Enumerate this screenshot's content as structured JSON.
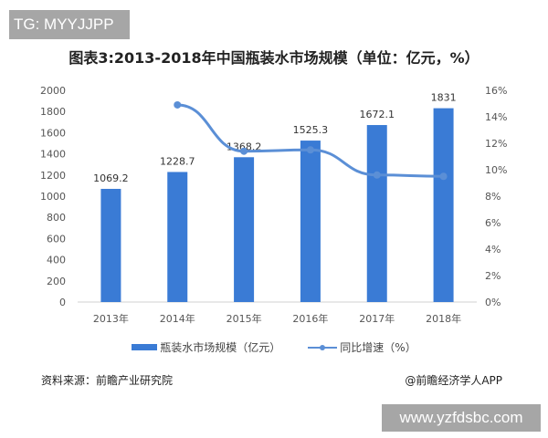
{
  "tag": "TG: MYYJJPP",
  "watermark": "www.yzfdsbc.com",
  "source": "资料来源：前瞻产业研究院",
  "credit": "@前瞻经济学人APP",
  "chart_data": {
    "type": "bar+line",
    "title": "图表3:2013-2018年中国瓶装水市场规模（单位：亿元，%）",
    "categories": [
      "2013年",
      "2014年",
      "2015年",
      "2016年",
      "2017年",
      "2018年"
    ],
    "series": [
      {
        "name": "瓶装水市场规模（亿元）",
        "type": "bar",
        "axis": "left",
        "values": [
          1069.2,
          1228.7,
          1368.2,
          1525.3,
          1672.1,
          1831
        ],
        "labels": [
          "1069.2",
          "1228.7",
          "1368.2",
          "1525.3",
          "1672.1",
          "1831"
        ],
        "color": "#3a7bd5"
      },
      {
        "name": "同比增速（%）",
        "type": "line",
        "axis": "right",
        "values": [
          null,
          14.9,
          11.4,
          11.5,
          9.6,
          9.5
        ],
        "color": "#5b8fd6"
      }
    ],
    "left_axis": {
      "range": [
        0,
        2000
      ],
      "ticks": [
        "0",
        "200",
        "400",
        "600",
        "800",
        "1000",
        "1200",
        "1400",
        "1600",
        "1800",
        "2000"
      ]
    },
    "right_axis": {
      "range": [
        0,
        16
      ],
      "ticks": [
        "0%",
        "2%",
        "4%",
        "6%",
        "8%",
        "10%",
        "12%",
        "14%",
        "16%"
      ]
    },
    "grid": false,
    "legend": "bottom"
  }
}
